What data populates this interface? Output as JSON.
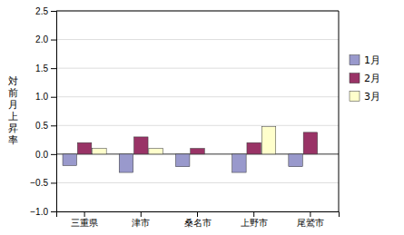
{
  "chart_data": {
    "type": "bar",
    "categories": [
      "三重県",
      "津市",
      "桑名市",
      "上野市",
      "尾鷲市"
    ],
    "series": [
      {
        "name": "1月",
        "color": "#9999cc",
        "values": [
          -0.2,
          -0.32,
          -0.22,
          -0.32,
          -0.22
        ]
      },
      {
        "name": "2月",
        "color": "#993366",
        "values": [
          0.2,
          0.3,
          0.1,
          0.2,
          0.38
        ]
      },
      {
        "name": "3月",
        "color": "#ffffcc",
        "values": [
          0.1,
          0.1,
          0.0,
          0.48,
          0.0
        ]
      }
    ],
    "y_label": "対\n前\n月\n上\n昇\n率",
    "ylim": [
      -1.0,
      2.5
    ],
    "yticks": [
      {
        "value": -1.0,
        "label": "−1.0"
      },
      {
        "value": -0.5,
        "label": "−0.5"
      },
      {
        "value": 0.0,
        "label": "0.0"
      },
      0.5,
      {
        "value": 1.0,
        "label": "1.0"
      },
      1.5,
      {
        "value": 2.0,
        "label": "2.0"
      },
      2.5
    ],
    "grid": true,
    "legend": "right"
  }
}
